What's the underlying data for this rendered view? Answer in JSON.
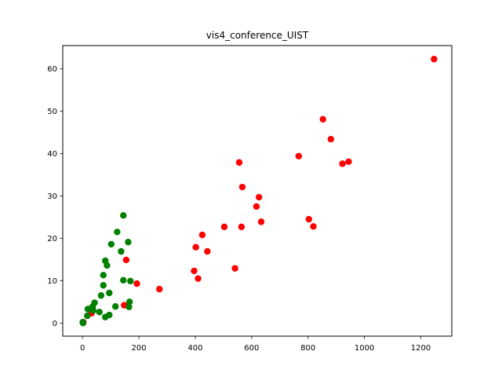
{
  "chart_data": {
    "type": "scatter",
    "title": "vis4_conference_UIST",
    "xlabel": "",
    "ylabel": "",
    "xlim": [
      -70,
      1310
    ],
    "ylim": [
      -3.1,
      65.5
    ],
    "xticks": [
      0,
      200,
      400,
      600,
      800,
      1000,
      1200
    ],
    "yticks": [
      0,
      10,
      20,
      30,
      40,
      50,
      60
    ],
    "grid": false,
    "colors": {
      "red_series": "#ff0000",
      "green_series": "#008000"
    },
    "series": [
      {
        "color": "#ff0000",
        "points": [
          [
            1247,
            62.3
          ],
          [
            853,
            48.1
          ],
          [
            881,
            43.4
          ],
          [
            767,
            39.4
          ],
          [
            944,
            38.1
          ],
          [
            922,
            37.6
          ],
          [
            556,
            37.9
          ],
          [
            567,
            32.1
          ],
          [
            626,
            29.7
          ],
          [
            617,
            27.5
          ],
          [
            634,
            23.9
          ],
          [
            803,
            24.5
          ],
          [
            819,
            22.8
          ],
          [
            503,
            22.7
          ],
          [
            564,
            22.7
          ],
          [
            425,
            20.8
          ],
          [
            402,
            17.9
          ],
          [
            443,
            16.9
          ],
          [
            155,
            14.9
          ],
          [
            396,
            12.3
          ],
          [
            541,
            12.9
          ],
          [
            410,
            10.5
          ],
          [
            193,
            9.3
          ],
          [
            273,
            8.0
          ],
          [
            148,
            4.2
          ],
          [
            32,
            2.3
          ],
          [
            3,
            0.2
          ]
        ]
      },
      {
        "color": "#008000",
        "points": [
          [
            145,
            25.4
          ],
          [
            123,
            21.5
          ],
          [
            162,
            19.1
          ],
          [
            102,
            18.6
          ],
          [
            137,
            16.9
          ],
          [
            81,
            14.7
          ],
          [
            87,
            13.6
          ],
          [
            74,
            11.3
          ],
          [
            145,
            10.1
          ],
          [
            170,
            9.9
          ],
          [
            74,
            8.9
          ],
          [
            95,
            7.1
          ],
          [
            66,
            6.5
          ],
          [
            167,
            5.0
          ],
          [
            43,
            4.8
          ],
          [
            117,
            3.9
          ],
          [
            165,
            3.8
          ],
          [
            36,
            3.9
          ],
          [
            19,
            3.3
          ],
          [
            38,
            3.0
          ],
          [
            60,
            2.6
          ],
          [
            95,
            1.9
          ],
          [
            81,
            1.4
          ],
          [
            17,
            1.7
          ],
          [
            1,
            0.2
          ],
          [
            2,
            0.0
          ]
        ]
      }
    ]
  }
}
